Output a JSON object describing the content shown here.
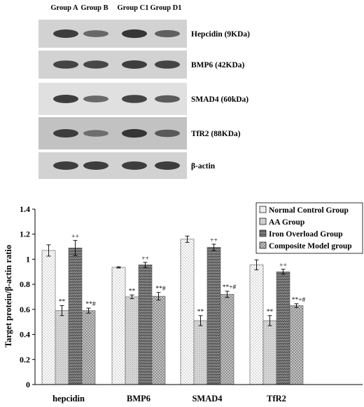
{
  "blot": {
    "lanes": [
      "Group A",
      "Group B",
      "Group C1",
      "Group D1"
    ],
    "bands": [
      {
        "label": "Hepcidin (9KDa)",
        "intensity": [
          0.85,
          0.55,
          0.9,
          0.6
        ]
      },
      {
        "label": "BMP6 (42KDa)",
        "intensity": [
          0.8,
          0.78,
          0.85,
          0.8
        ]
      },
      {
        "label": "SMAD4 (60kDa)",
        "intensity": [
          0.85,
          0.55,
          0.8,
          0.65
        ]
      },
      {
        "label": "TfR2 (88KDa)",
        "intensity": [
          0.85,
          0.5,
          0.9,
          0.65
        ]
      },
      {
        "label": "β-actin",
        "intensity": [
          0.85,
          0.85,
          0.85,
          0.85
        ]
      }
    ]
  },
  "chart_data": {
    "type": "bar",
    "categories": [
      "hepcidin",
      "BMP6",
      "SMAD4",
      "TfR2"
    ],
    "ylabel": "Target protein/β-actin ratio",
    "ylim": [
      0,
      1.4
    ],
    "yticks": [
      "0",
      "0.2",
      "0.4",
      "0.6",
      "0.8",
      "1",
      "1.2",
      "1.4"
    ],
    "grid": false,
    "legend_position": "top-right",
    "series": [
      {
        "name": "Normal Control Group",
        "pattern": "dots",
        "values": [
          1.07,
          0.935,
          1.16,
          0.955
        ],
        "errors": [
          0.045,
          0.005,
          0.025,
          0.04
        ],
        "annotations": [
          "",
          "",
          "",
          ""
        ]
      },
      {
        "name": "AA Group",
        "pattern": "light",
        "values": [
          0.59,
          0.7,
          0.51,
          0.51
        ],
        "errors": [
          0.04,
          0.015,
          0.04,
          0.04
        ],
        "annotations": [
          "**",
          "**",
          "**",
          "**"
        ]
      },
      {
        "name": "Iron Overload Group",
        "pattern": "zigzag",
        "values": [
          1.09,
          0.955,
          1.095,
          0.9
        ],
        "errors": [
          0.06,
          0.02,
          0.025,
          0.02
        ],
        "annotations": [
          "++",
          "++",
          "++",
          "++"
        ]
      },
      {
        "name": "Composite Model group",
        "pattern": "crosshatch",
        "values": [
          0.59,
          0.705,
          0.72,
          0.63
        ],
        "errors": [
          0.02,
          0.03,
          0.025,
          0.015
        ],
        "annotations": [
          "**#",
          "**#",
          "**+#",
          "**+#"
        ]
      }
    ]
  }
}
